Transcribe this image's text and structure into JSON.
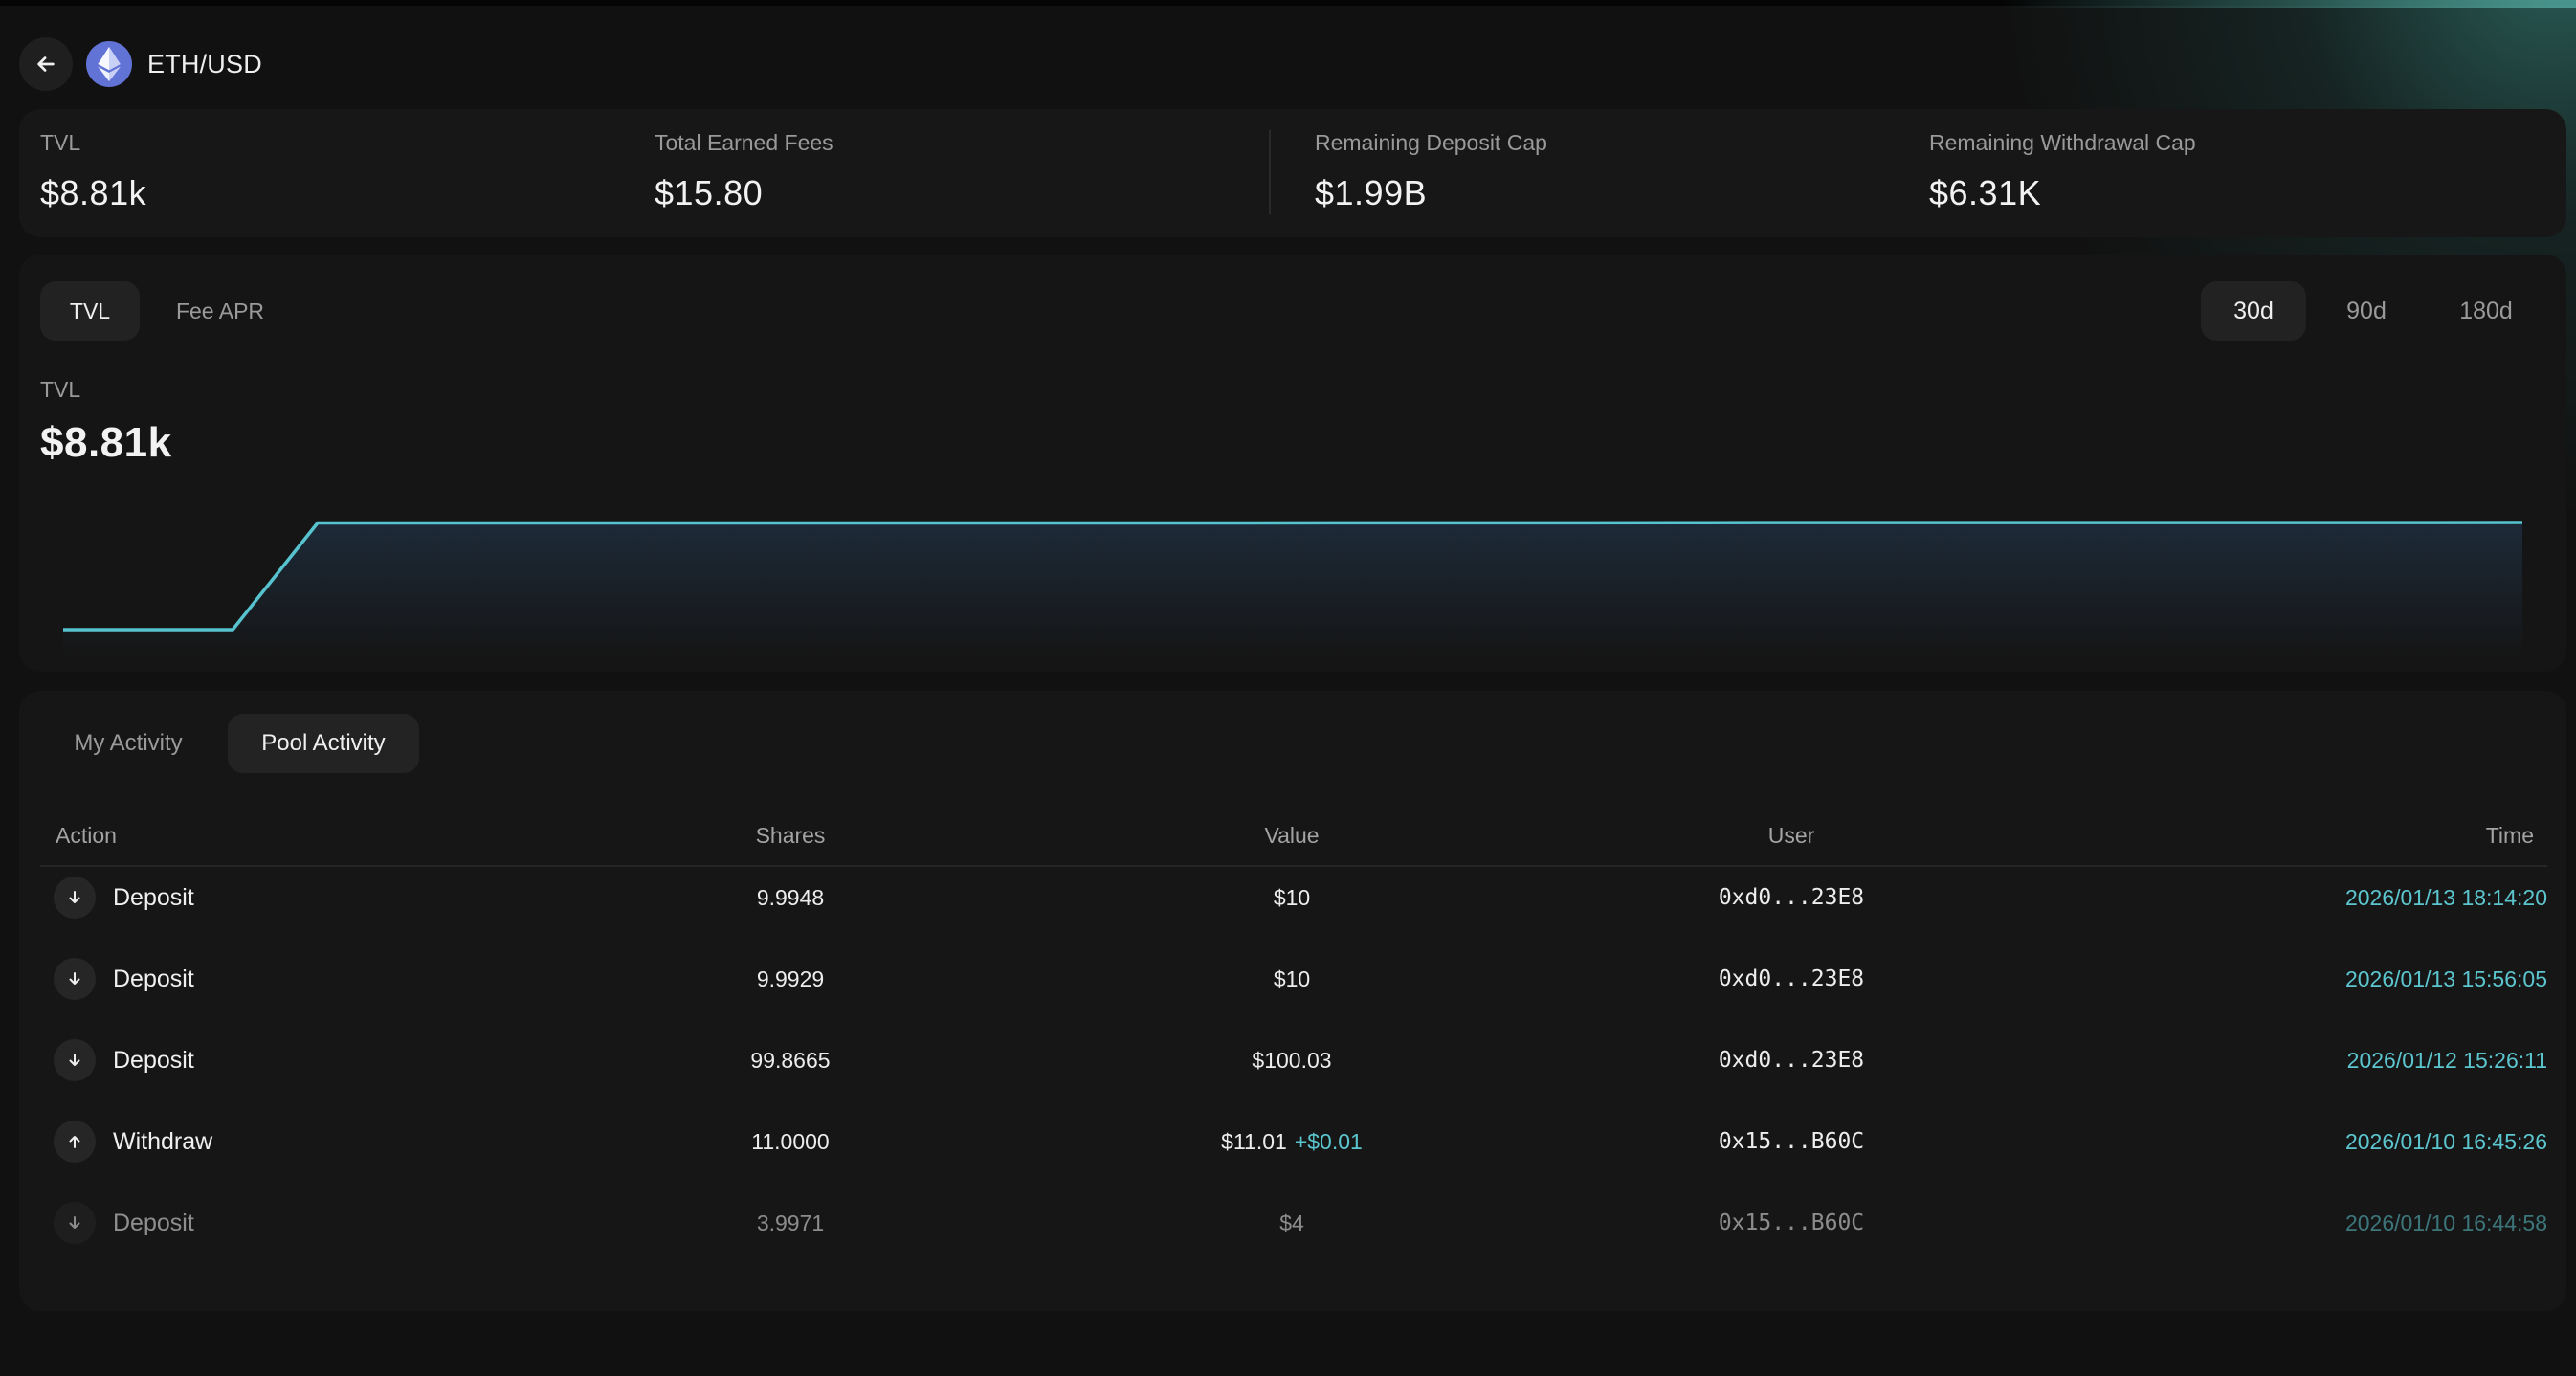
{
  "header": {
    "back_icon": "arrow-left-icon",
    "token_icon": "ethereum-icon",
    "title": "ETH/USD"
  },
  "stats": [
    {
      "label": "TVL",
      "value": "$8.81k"
    },
    {
      "label": "Total Earned Fees",
      "value": "$15.80"
    },
    {
      "label": "Remaining Deposit Cap",
      "value": "$1.99B"
    },
    {
      "label": "Remaining Withdrawal Cap",
      "value": "$6.31K"
    }
  ],
  "chart_tabs": [
    {
      "label": "TVL",
      "active": true
    },
    {
      "label": "Fee APR",
      "active": false
    }
  ],
  "range_tabs": [
    {
      "label": "30d",
      "active": true
    },
    {
      "label": "90d",
      "active": false
    },
    {
      "label": "180d",
      "active": false
    }
  ],
  "chart_summary": {
    "label": "TVL",
    "value": "$8.81k"
  },
  "chart_data": {
    "type": "area",
    "title": "",
    "xlabel": "",
    "ylabel": "",
    "line_color": "#56c3cf",
    "grid": false,
    "legend": "none",
    "x": [
      0,
      1,
      2,
      3,
      4,
      5,
      6,
      7,
      8,
      9,
      10,
      11,
      12,
      13,
      14,
      15,
      16,
      17,
      18,
      19,
      20,
      21,
      22,
      23,
      24,
      25,
      26,
      27,
      28,
      29
    ],
    "values": [
      0,
      0,
      0,
      8770,
      8770,
      8770,
      8770,
      8770,
      8770,
      8770,
      8770,
      8770,
      8770,
      8770,
      8770,
      8780,
      8780,
      8780,
      8780,
      8790,
      8800,
      8800,
      8800,
      8800,
      8800,
      8800,
      8800,
      8800,
      8805,
      8810
    ],
    "ylim": [
      0,
      8810
    ]
  },
  "activity_tabs": [
    {
      "label": "My Activity",
      "active": false
    },
    {
      "label": "Pool Activity",
      "active": true
    }
  ],
  "table": {
    "headers": {
      "action": "Action",
      "shares": "Shares",
      "value": "Value",
      "user": "User",
      "time": "Time"
    },
    "rows": [
      {
        "action": "Deposit",
        "icon": "arrow-down-icon",
        "shares": "9.9948",
        "value": "$10",
        "delta": "",
        "user": "0xd0...23E8",
        "time": "2026/01/13 18:14:20"
      },
      {
        "action": "Deposit",
        "icon": "arrow-down-icon",
        "shares": "9.9929",
        "value": "$10",
        "delta": "",
        "user": "0xd0...23E8",
        "time": "2026/01/13 15:56:05"
      },
      {
        "action": "Deposit",
        "icon": "arrow-down-icon",
        "shares": "99.8665",
        "value": "$100.03",
        "delta": "",
        "user": "0xd0...23E8",
        "time": "2026/01/12 15:26:11"
      },
      {
        "action": "Withdraw",
        "icon": "arrow-up-icon",
        "shares": "11.0000",
        "value": "$11.01",
        "delta": "+$0.01",
        "user": "0x15...B60C",
        "time": "2026/01/10 16:45:26"
      },
      {
        "action": "Deposit",
        "icon": "arrow-down-icon",
        "shares": "3.9971",
        "value": "$4",
        "delta": "",
        "user": "0x15...B60C",
        "time": "2026/01/10 16:44:58"
      }
    ]
  }
}
